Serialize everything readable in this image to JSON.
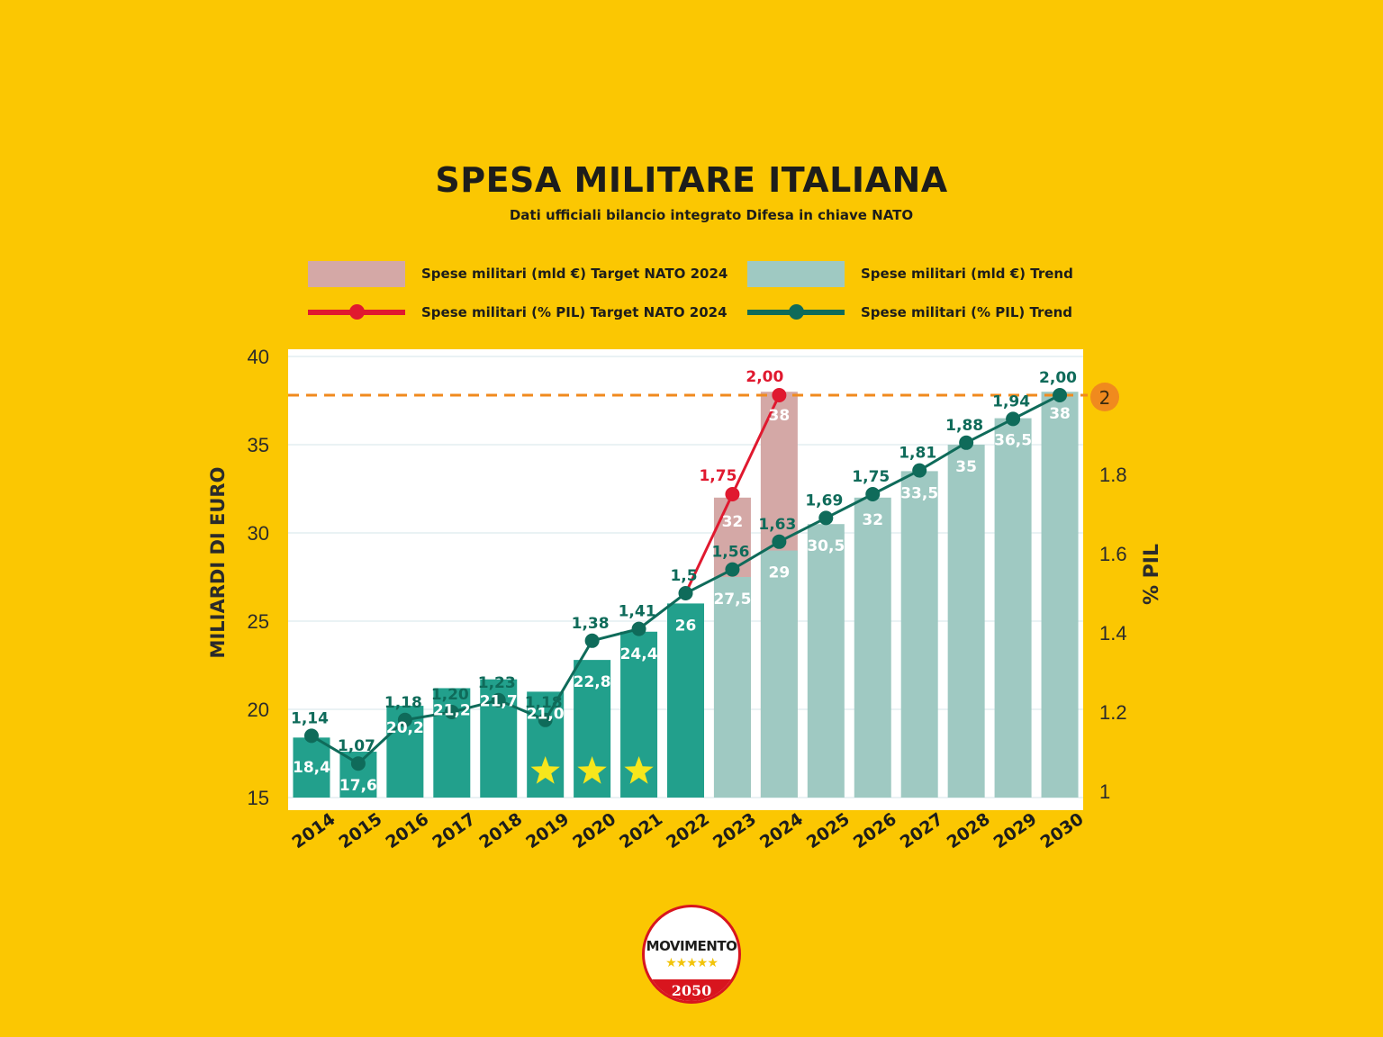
{
  "page": {
    "title": "SPESA MILITARE ITALIANA",
    "subtitle": "Dati ufficiali bilancio integrato Difesa in chiave NATO"
  },
  "legend": [
    {
      "label": "Spese militari (mld €) Target NATO 2024",
      "kind": "bar",
      "color": "#d4a8a6"
    },
    {
      "label": "Spese militari (mld €) Trend",
      "kind": "bar",
      "color": "#9fc9c2"
    },
    {
      "label": "Spese militari (% PIL) Target NATO 2024",
      "kind": "line",
      "color": "#e0192f"
    },
    {
      "label": "Spese militari (% PIL) Trend",
      "kind": "line",
      "color": "#0f6b5a"
    }
  ],
  "chart_data": {
    "type": "bar",
    "categories": [
      "2014",
      "2015",
      "2016",
      "2017",
      "2018",
      "2019",
      "2020",
      "2021",
      "2022",
      "2023",
      "2024",
      "2025",
      "2026",
      "2027",
      "2028",
      "2029",
      "2030"
    ],
    "ylabel": "MILIARDI DI EURO",
    "y2label": "% PIL",
    "ylim": [
      15,
      40
    ],
    "yticks": [
      "15",
      "20",
      "25",
      "30",
      "35",
      "40"
    ],
    "y2lim": [
      1,
      2.1
    ],
    "y2ticks": [
      "1",
      "1.2",
      "1.4",
      "1.6",
      "1.8"
    ],
    "target_line": {
      "value": 2,
      "label": "2",
      "color": "#f08a1e",
      "style": "dashed"
    },
    "series": [
      {
        "name": "Spese militari (mld €) Trend",
        "type": "bar",
        "values": [
          18.4,
          17.6,
          20.2,
          21.2,
          21.7,
          21.0,
          22.8,
          24.4,
          26,
          27.5,
          29,
          30.5,
          32,
          33.5,
          35,
          36.5,
          38
        ],
        "labels": [
          "18,4",
          "17,6",
          "20,2",
          "21,2",
          "21,7",
          "21,0",
          "22,8",
          "24,4",
          "26",
          "27,5",
          "29",
          "30,5",
          "32",
          "33,5",
          "35",
          "36,5",
          "38"
        ],
        "colors_actual": "#22a08c",
        "colors_trend": "#9fc9c2",
        "actual_through": "2022"
      },
      {
        "name": "Spese militari (mld €) Target NATO 2024",
        "type": "bar",
        "x": [
          "2023",
          "2024"
        ],
        "values": [
          32,
          38
        ],
        "labels": [
          "32",
          "38"
        ],
        "color": "#d4a8a6"
      },
      {
        "name": "Spese militari (% PIL) Trend",
        "type": "line",
        "values": [
          1.14,
          1.07,
          1.18,
          1.2,
          1.23,
          1.18,
          1.38,
          1.41,
          1.5,
          1.56,
          1.63,
          1.69,
          1.75,
          1.81,
          1.88,
          1.94,
          2.0
        ],
        "labels": [
          "1,14",
          "1,07",
          "1,18",
          "1,20",
          "1,23",
          "1,18",
          "1,38",
          "1,41",
          "1,5",
          "1,56",
          "1,63",
          "1,69",
          "1,75",
          "1,81",
          "1,88",
          "1,94",
          "2,00"
        ],
        "color": "#0f6b5a"
      },
      {
        "name": "Spese militari (% PIL) Target NATO 2024",
        "type": "line",
        "x": [
          "2022",
          "2023",
          "2024"
        ],
        "values": [
          1.5,
          1.75,
          2.0
        ],
        "labels": [
          "",
          "1,75",
          "2,00"
        ],
        "color": "#e0192f"
      }
    ],
    "star_years": [
      "2019",
      "2020",
      "2021"
    ],
    "grid": true
  },
  "logo": {
    "text": "MOVIMENTO",
    "stars": "★★★★★",
    "year": "2050"
  }
}
